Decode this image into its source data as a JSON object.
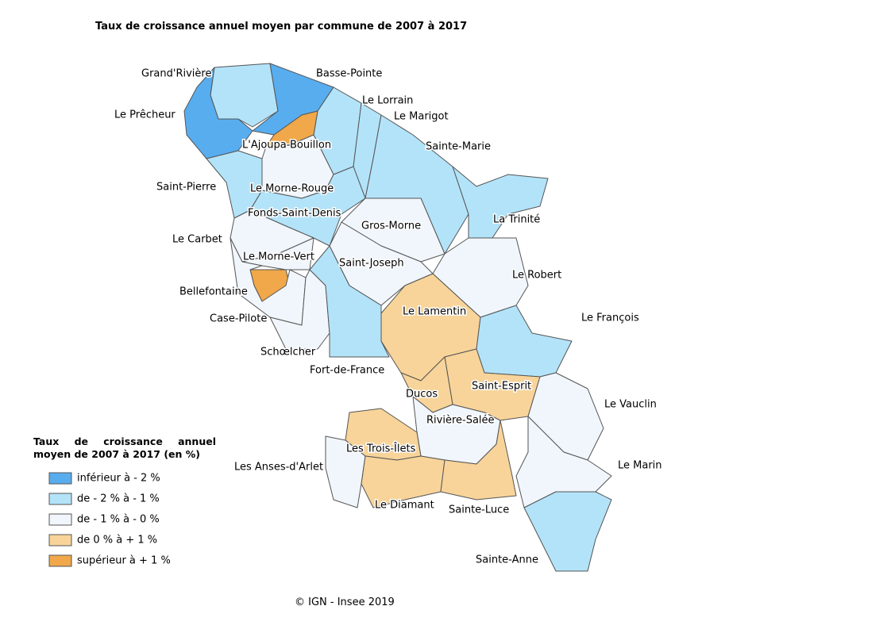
{
  "title": "Taux de croissance annuel moyen par commune de 2007 à 2017",
  "communes": [
    {
      "name": "Grand'Rivière",
      "color": "#b3e3f9"
    },
    {
      "name": "Basse-Pointe",
      "color": "#58adef"
    },
    {
      "name": "Le Lorrain",
      "color": "#b3e3f9"
    },
    {
      "name": "Le Marigot",
      "color": "#b3e3f9"
    },
    {
      "name": "Sainte-Marie",
      "color": "#b3e3f9"
    },
    {
      "name": "Le Prêcheur",
      "color": "#58adef"
    },
    {
      "name": "L'Ajoupa-Bouillon",
      "color": "#f0a84a"
    },
    {
      "name": "Saint-Pierre",
      "color": "#b3e3f9"
    },
    {
      "name": "Le Morne-Rouge",
      "color": "#f0f6fc"
    },
    {
      "name": "Fonds-Saint-Denis",
      "color": "#b3e3f9"
    },
    {
      "name": "La Trinité",
      "color": "#b3e3f9"
    },
    {
      "name": "Gros-Morne",
      "color": "#f0f6fc"
    },
    {
      "name": "Le Carbet",
      "color": "#f0f6fc"
    },
    {
      "name": "Le Morne-Vert",
      "color": "#f0f6fc"
    },
    {
      "name": "Saint-Joseph",
      "color": "#f0f6fc"
    },
    {
      "name": "Le Robert",
      "color": "#f0f6fc"
    },
    {
      "name": "Bellefontaine",
      "color": "#f0a84a"
    },
    {
      "name": "Le Lamentin",
      "color": "#f8d49a"
    },
    {
      "name": "Case-Pilote",
      "color": "#f0f6fc"
    },
    {
      "name": "Le François",
      "color": "#b3e3f9"
    },
    {
      "name": "Schœlcher",
      "color": "#f0f6fc"
    },
    {
      "name": "Fort-de-France",
      "color": "#b3e3f9"
    },
    {
      "name": "Saint-Esprit",
      "color": "#f8d49a"
    },
    {
      "name": "Ducos",
      "color": "#f8d49a"
    },
    {
      "name": "Le Vauclin",
      "color": "#f0f6fc"
    },
    {
      "name": "Rivière-Salée",
      "color": "#f0f6fc"
    },
    {
      "name": "Les Trois-Îlets",
      "color": "#f8d49a"
    },
    {
      "name": "Les Anses-d'Arlet",
      "color": "#f0f6fc"
    },
    {
      "name": "Le Marin",
      "color": "#f0f6fc"
    },
    {
      "name": "Le Diamant",
      "color": "#f8d49a"
    },
    {
      "name": "Sainte-Luce",
      "color": "#f8d49a"
    },
    {
      "name": "Sainte-Anne",
      "color": "#b3e3f9"
    }
  ],
  "legend": {
    "title": "Taux de croissance annuel moyen de 2007 à 2017 (en %)",
    "items": [
      {
        "label": "inférieur à - 2 %",
        "color": "#58adef"
      },
      {
        "label": "de - 2 % à - 1 %",
        "color": "#b3e3f9"
      },
      {
        "label": "de - 1 % à - 0 %",
        "color": "#f0f6fc"
      },
      {
        "label": "de 0 % à + 1 %",
        "color": "#f8d49a"
      },
      {
        "label": "supérieur à + 1 %",
        "color": "#f0a84a"
      }
    ]
  },
  "source": "© IGN - Insee 2019"
}
